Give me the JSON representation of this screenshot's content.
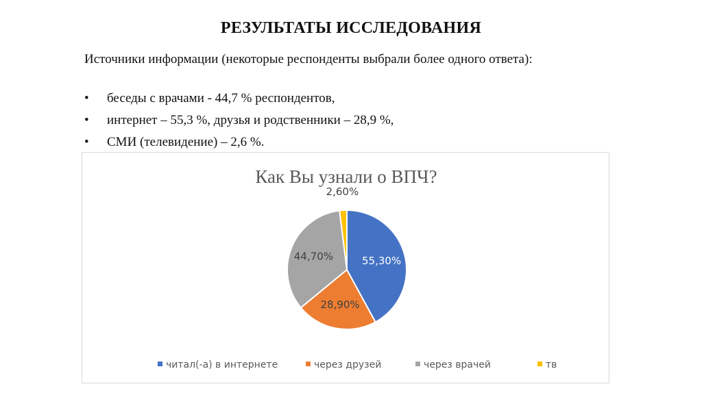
{
  "slide": {
    "title": "РЕЗУЛЬТАТЫ ИССЛЕДОВАНИЯ",
    "intro": "Источники информации (некоторые респонденты выбрали более одного ответа):",
    "bullet_symbol": "•",
    "bullets": [
      "беседы с врачами - 44,7 % респондентов,",
      "интернет – 55,3 %, друзья и родственники – 28,9 %,",
      "СМИ (телевидение) – 2,6 %."
    ]
  },
  "chart_data": {
    "type": "pie",
    "title": "Как Вы узнали о ВПЧ?",
    "categories": [
      "читал(-а) в интернете",
      "через друзей",
      "через врачей",
      "тв"
    ],
    "values": [
      55.3,
      28.9,
      44.7,
      2.6
    ],
    "labels": [
      "55,30%",
      "28,90%",
      "44,70%",
      "2,60%"
    ],
    "colors": [
      "#4472C4",
      "#ED7D31",
      "#A5A5A5",
      "#FFC000"
    ],
    "label_colors": [
      "#ffffff",
      "#404040",
      "#404040",
      "#404040"
    ],
    "legend_position": "bottom"
  }
}
